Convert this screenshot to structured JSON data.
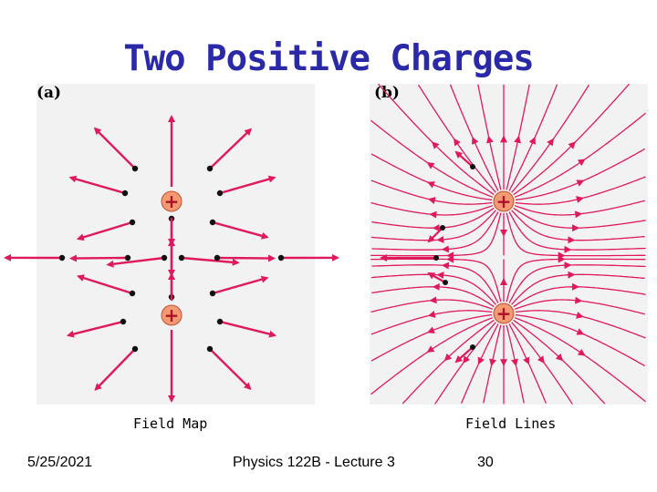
{
  "slide": {
    "title": "Two Positive Charges",
    "panel_a_label": "(a)",
    "panel_b_label": "(b)",
    "caption_left": "Field Map",
    "caption_right": "Field Lines",
    "footer_date": "5/25/2021",
    "footer_course": "Physics 122B  -  Lecture 3",
    "footer_page": "30"
  },
  "charges": {
    "symbol": "+"
  },
  "colors": {
    "title": "#2a2aa8",
    "field": "#e0195d",
    "charge_fill": "#f49a72",
    "dot": "#111111",
    "panel_bg": "#f2f2f2"
  }
}
